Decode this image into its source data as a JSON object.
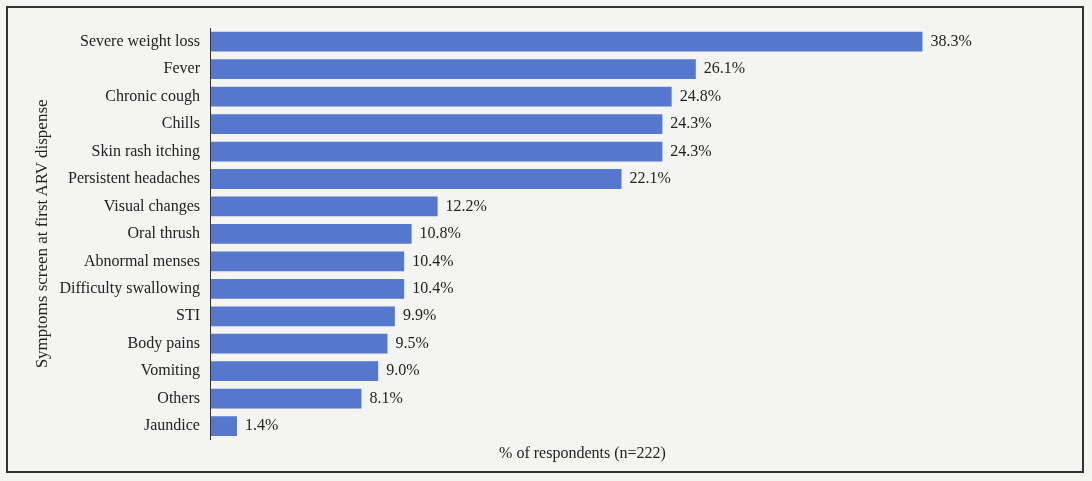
{
  "chart_data": {
    "type": "bar",
    "orientation": "horizontal",
    "xlabel": "% of respondents (n=222)",
    "ylabel": "Symptoms screen at first ARV dispense",
    "categories": [
      "Severe weight loss",
      "Fever",
      "Chronic cough",
      "Chills",
      "Skin rash itching",
      "Persistent headaches",
      "Visual changes",
      "Oral thrush",
      "Abnormal menses",
      "Difficulty swallowing",
      "STI",
      "Body pains",
      "Vomiting",
      "Others",
      "Jaundice"
    ],
    "values": [
      38.3,
      26.1,
      24.8,
      24.3,
      24.3,
      22.1,
      12.2,
      10.8,
      10.4,
      10.4,
      9.9,
      9.5,
      9.0,
      8.1,
      1.4
    ],
    "value_labels": [
      "38.3%",
      "26.1%",
      "24.8%",
      "24.3%",
      "24.3%",
      "22.1%",
      "12.2%",
      "10.8%",
      "10.4%",
      "10.4%",
      "9.9%",
      "9.5%",
      "9.0%",
      "8.1%",
      "1.4%"
    ],
    "color": "#5577cc",
    "grid": false,
    "legend": false
  }
}
